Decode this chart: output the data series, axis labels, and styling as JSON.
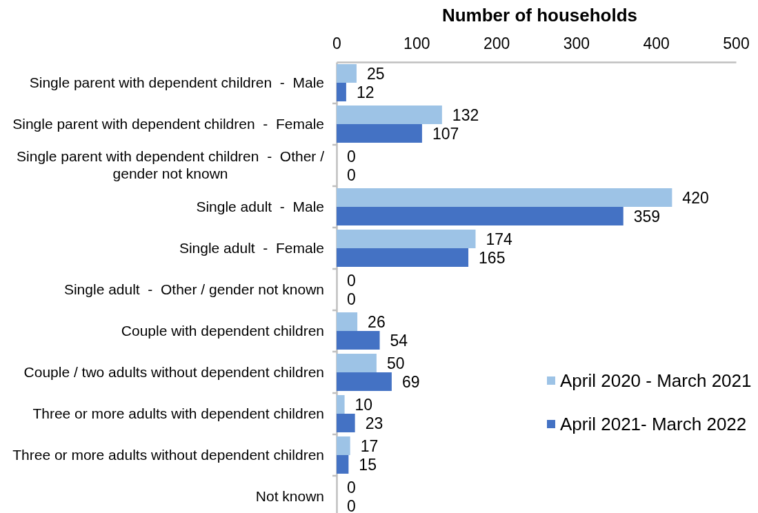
{
  "chart_data": {
    "type": "bar",
    "orientation": "horizontal",
    "xlabel": "Number of households",
    "categories": [
      "Single parent with dependent children  -  Male",
      "Single parent with dependent children  -  Female",
      "Single parent with dependent children  -  Other / gender not known",
      "Single adult  -  Male",
      "Single adult  -  Female",
      "Single adult  -  Other / gender not known",
      "Couple with dependent children",
      "Couple / two adults without dependent children",
      "Three or more adults with dependent children",
      "Three or more adults without dependent children",
      "Not known"
    ],
    "series": [
      {
        "name": "April 2020 - March 2021",
        "color": "#9dc3e6",
        "values": [
          25,
          132,
          0,
          420,
          174,
          0,
          26,
          50,
          10,
          17,
          0
        ]
      },
      {
        "name": "April 2021- March 2022",
        "color": "#4472c4",
        "values": [
          12,
          107,
          0,
          359,
          165,
          0,
          54,
          69,
          23,
          15,
          0
        ]
      }
    ],
    "xlim": [
      0,
      500
    ],
    "xticks": [
      0,
      100,
      200,
      300,
      400,
      500
    ],
    "data_labels": true,
    "legend": "right"
  }
}
